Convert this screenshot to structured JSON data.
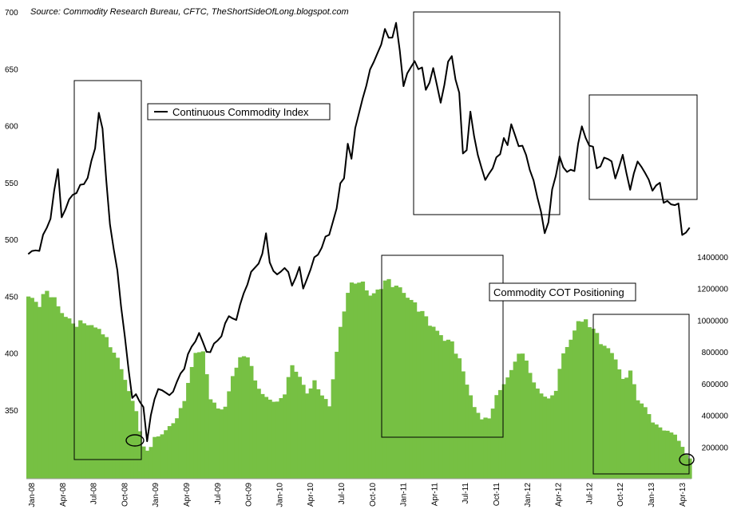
{
  "chart_data": {
    "type": "line+area",
    "source_note": "Source: Commodity Research Bureau, CFTC, TheShortSideOfLong.blogspot.com",
    "x": [
      "Jan-08",
      "Apr-08",
      "Jul-08",
      "Oct-08",
      "Jan-09",
      "Apr-09",
      "Jul-09",
      "Oct-09",
      "Jan-10",
      "Apr-10",
      "Jul-10",
      "Oct-10",
      "Jan-11",
      "Apr-11",
      "Jul-11",
      "Oct-11",
      "Jan-12",
      "Apr-12",
      "Jul-12",
      "Oct-12",
      "Jan-13",
      "Apr-13"
    ],
    "y_left": {
      "range": [
        300,
        700
      ],
      "ticks": [
        350,
        400,
        450,
        500,
        550,
        600,
        650,
        700
      ]
    },
    "y_right": {
      "range": [
        0,
        1400000
      ],
      "ticks": [
        200000,
        400000,
        600000,
        800000,
        1000000,
        1200000,
        1400000
      ]
    },
    "series": [
      {
        "name": "Continuous Commodity Index",
        "kind": "line",
        "axis": "left",
        "color": "#000000",
        "knots": [
          [
            0,
            487
          ],
          [
            3,
            492
          ],
          [
            6,
            520
          ],
          [
            8,
            562
          ],
          [
            9,
            520
          ],
          [
            12,
            540
          ],
          [
            14,
            545
          ],
          [
            16,
            555
          ],
          [
            18,
            580
          ],
          [
            19,
            612
          ],
          [
            20,
            598
          ],
          [
            21,
            550
          ],
          [
            22,
            515
          ],
          [
            24,
            470
          ],
          [
            26,
            415
          ],
          [
            27,
            385
          ],
          [
            28,
            360
          ],
          [
            29,
            365
          ],
          [
            31,
            350
          ],
          [
            32,
            325
          ],
          [
            33,
            345
          ],
          [
            35,
            370
          ],
          [
            38,
            362
          ],
          [
            41,
            380
          ],
          [
            43,
            398
          ],
          [
            46,
            418
          ],
          [
            48,
            400
          ],
          [
            51,
            410
          ],
          [
            54,
            432
          ],
          [
            56,
            430
          ],
          [
            59,
            463
          ],
          [
            61,
            475
          ],
          [
            63,
            486
          ],
          [
            64,
            505
          ],
          [
            65,
            480
          ],
          [
            67,
            467
          ],
          [
            69,
            477
          ],
          [
            71,
            460
          ],
          [
            73,
            475
          ],
          [
            74,
            456
          ],
          [
            76,
            475
          ],
          [
            78,
            488
          ],
          [
            80,
            500
          ],
          [
            81,
            505
          ],
          [
            83,
            527
          ],
          [
            84,
            548
          ],
          [
            85,
            555
          ],
          [
            86,
            585
          ],
          [
            87,
            568
          ],
          [
            88,
            600
          ],
          [
            90,
            622
          ],
          [
            92,
            650
          ],
          [
            94,
            662
          ],
          [
            96,
            685
          ],
          [
            97,
            675
          ],
          [
            98,
            680
          ],
          [
            99,
            690
          ],
          [
            100,
            665
          ],
          [
            101,
            635
          ],
          [
            102,
            647
          ],
          [
            104,
            655
          ],
          [
            106,
            650
          ],
          [
            107,
            630
          ],
          [
            109,
            650
          ],
          [
            111,
            620
          ],
          [
            113,
            655
          ],
          [
            114,
            660
          ],
          [
            116,
            627
          ],
          [
            117,
            575
          ],
          [
            118,
            580
          ],
          [
            119,
            612
          ],
          [
            120,
            590
          ],
          [
            121,
            574
          ],
          [
            122,
            565
          ],
          [
            123,
            550
          ],
          [
            125,
            565
          ],
          [
            127,
            575
          ],
          [
            128,
            590
          ],
          [
            129,
            583
          ],
          [
            130,
            600
          ],
          [
            132,
            584
          ],
          [
            134,
            575
          ],
          [
            136,
            550
          ],
          [
            138,
            525
          ],
          [
            139,
            506
          ],
          [
            140,
            513
          ],
          [
            141,
            545
          ],
          [
            143,
            570
          ],
          [
            145,
            560
          ],
          [
            147,
            560
          ],
          [
            148,
            585
          ],
          [
            149,
            600
          ],
          [
            150,
            587
          ],
          [
            152,
            582
          ],
          [
            153,
            560
          ],
          [
            155,
            572
          ],
          [
            157,
            568
          ],
          [
            158,
            555
          ],
          [
            160,
            572
          ],
          [
            161,
            561
          ],
          [
            162,
            543
          ],
          [
            164,
            570
          ],
          [
            166,
            558
          ],
          [
            168,
            545
          ],
          [
            170,
            548
          ],
          [
            171,
            535
          ],
          [
            173,
            530
          ],
          [
            175,
            532
          ],
          [
            176,
            503
          ],
          [
            177,
            505
          ],
          [
            178,
            513
          ]
        ]
      },
      {
        "name": "Commodity COT Positioning",
        "kind": "area",
        "axis": "right",
        "color": "#76c043",
        "knots": [
          [
            0,
            1150000
          ],
          [
            3,
            1100000
          ],
          [
            5,
            1190000
          ],
          [
            7,
            1130000
          ],
          [
            9,
            1050000
          ],
          [
            11,
            1000000
          ],
          [
            13,
            970000
          ],
          [
            15,
            990000
          ],
          [
            17,
            960000
          ],
          [
            19,
            950000
          ],
          [
            21,
            880000
          ],
          [
            23,
            800000
          ],
          [
            25,
            700000
          ],
          [
            27,
            550000
          ],
          [
            29,
            430000
          ],
          [
            30,
            300000
          ],
          [
            31,
            200000
          ],
          [
            32,
            180000
          ],
          [
            33,
            200000
          ],
          [
            34,
            260000
          ],
          [
            36,
            280000
          ],
          [
            38,
            330000
          ],
          [
            40,
            380000
          ],
          [
            42,
            500000
          ],
          [
            45,
            800000
          ],
          [
            47,
            800000
          ],
          [
            49,
            510000
          ],
          [
            51,
            440000
          ],
          [
            53,
            450000
          ],
          [
            55,
            650000
          ],
          [
            57,
            760000
          ],
          [
            59,
            780000
          ],
          [
            61,
            620000
          ],
          [
            63,
            530000
          ],
          [
            65,
            500000
          ],
          [
            67,
            480000
          ],
          [
            69,
            540000
          ],
          [
            71,
            720000
          ],
          [
            73,
            640000
          ],
          [
            75,
            540000
          ],
          [
            77,
            610000
          ],
          [
            79,
            530000
          ],
          [
            81,
            460000
          ],
          [
            83,
            800000
          ],
          [
            84,
            950000
          ],
          [
            86,
            1180000
          ],
          [
            88,
            1250000
          ],
          [
            90,
            1230000
          ],
          [
            92,
            1160000
          ],
          [
            94,
            1180000
          ],
          [
            96,
            1250000
          ],
          [
            98,
            1230000
          ],
          [
            100,
            1200000
          ],
          [
            102,
            1150000
          ],
          [
            104,
            1100000
          ],
          [
            106,
            1050000
          ],
          [
            108,
            980000
          ],
          [
            110,
            930000
          ],
          [
            112,
            880000
          ],
          [
            114,
            860000
          ],
          [
            116,
            750000
          ],
          [
            118,
            600000
          ],
          [
            120,
            450000
          ],
          [
            122,
            380000
          ],
          [
            124,
            380000
          ],
          [
            126,
            520000
          ],
          [
            128,
            600000
          ],
          [
            130,
            680000
          ],
          [
            132,
            800000
          ],
          [
            134,
            750000
          ],
          [
            136,
            600000
          ],
          [
            138,
            540000
          ],
          [
            140,
            500000
          ],
          [
            142,
            560000
          ],
          [
            144,
            800000
          ],
          [
            146,
            870000
          ],
          [
            148,
            1000000
          ],
          [
            150,
            990000
          ],
          [
            152,
            950000
          ],
          [
            154,
            860000
          ],
          [
            156,
            820000
          ],
          [
            158,
            760000
          ],
          [
            160,
            620000
          ],
          [
            162,
            680000
          ],
          [
            164,
            500000
          ],
          [
            166,
            450000
          ],
          [
            168,
            360000
          ],
          [
            170,
            320000
          ],
          [
            172,
            300000
          ],
          [
            174,
            280000
          ],
          [
            176,
            200000
          ],
          [
            177,
            150000
          ],
          [
            178,
            130000
          ]
        ]
      }
    ],
    "annotations": [
      {
        "type": "box"
      },
      {
        "type": "box"
      },
      {
        "type": "box"
      },
      {
        "type": "box"
      },
      {
        "type": "box"
      },
      {
        "type": "box"
      },
      {
        "type": "ellipse"
      },
      {
        "type": "ellipse"
      }
    ]
  }
}
